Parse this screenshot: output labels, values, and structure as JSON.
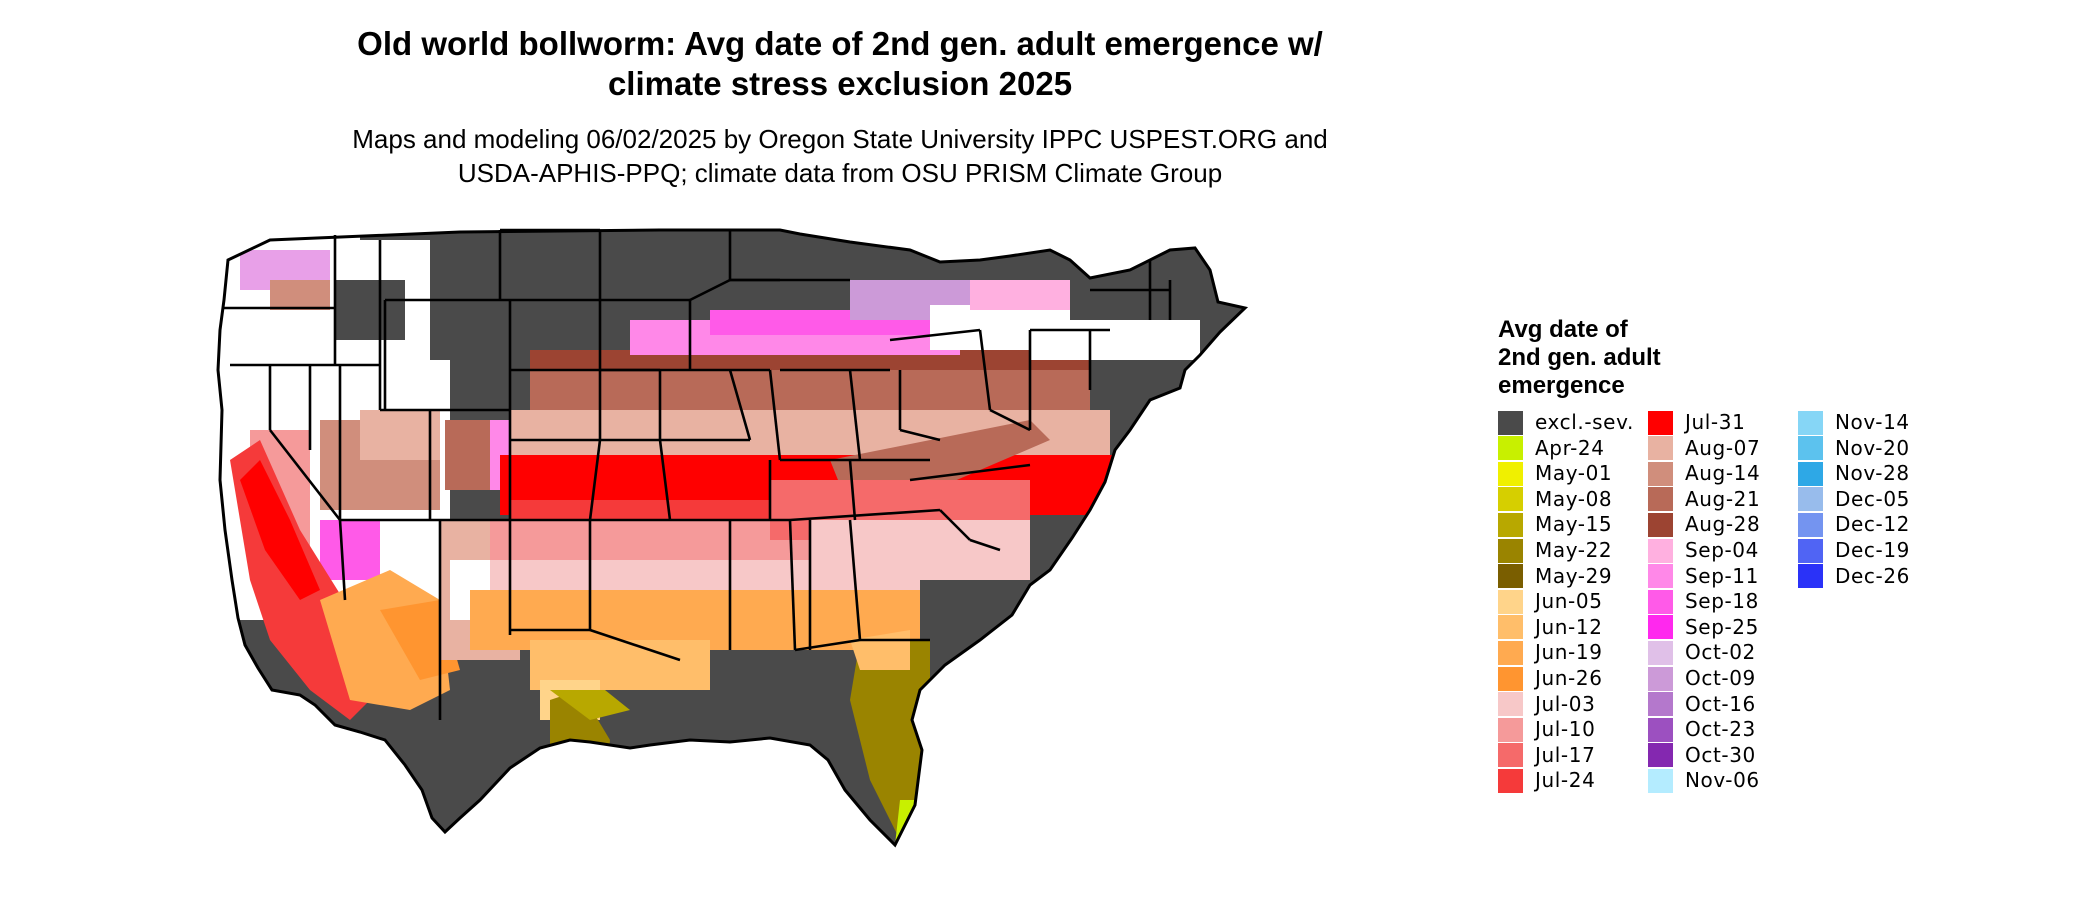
{
  "title_line1": "Old world bollworm: Avg date of 2nd gen. adult emergence w/",
  "title_line2": "climate stress exclusion 2025",
  "subtitle_line1": "Maps and modeling 06/02/2025 by Oregon State University IPPC USPEST.ORG and",
  "subtitle_line2": "USDA-APHIS-PPQ; climate data from OSU PRISM Climate Group",
  "legend": {
    "title_line1": "Avg date of",
    "title_line2": "2nd gen. adult",
    "title_line3": "emergence",
    "items": [
      {
        "label": "excl.-sev.",
        "color": "#4a4a4a"
      },
      {
        "label": "Apr-24",
        "color": "#c8f000"
      },
      {
        "label": "May-01",
        "color": "#f0f000"
      },
      {
        "label": "May-08",
        "color": "#d6cf00"
      },
      {
        "label": "May-15",
        "color": "#b8a800"
      },
      {
        "label": "May-22",
        "color": "#9a8400"
      },
      {
        "label": "May-29",
        "color": "#7a5e00"
      },
      {
        "label": "Jun-05",
        "color": "#ffd48a"
      },
      {
        "label": "Jun-12",
        "color": "#ffbe6a"
      },
      {
        "label": "Jun-19",
        "color": "#ffaa50"
      },
      {
        "label": "Jun-26",
        "color": "#ff9530"
      },
      {
        "label": "Jul-03",
        "color": "#f7c8c8"
      },
      {
        "label": "Jul-10",
        "color": "#f59a9a"
      },
      {
        "label": "Jul-17",
        "color": "#f56a6a"
      },
      {
        "label": "Jul-24",
        "color": "#f53a3a"
      },
      {
        "label": "Jul-31",
        "color": "#ff0000"
      },
      {
        "label": "Aug-07",
        "color": "#e8b2a2"
      },
      {
        "label": "Aug-14",
        "color": "#d08e7c"
      },
      {
        "label": "Aug-21",
        "color": "#b86a58"
      },
      {
        "label": "Aug-28",
        "color": "#9c4432"
      },
      {
        "label": "Sep-04",
        "color": "#ffb0e0"
      },
      {
        "label": "Sep-11",
        "color": "#ff88e8"
      },
      {
        "label": "Sep-18",
        "color": "#ff5ae8"
      },
      {
        "label": "Sep-25",
        "color": "#ff28ee"
      },
      {
        "label": "Oct-02",
        "color": "#e0c0e8"
      },
      {
        "label": "Oct-09",
        "color": "#cc9ad8"
      },
      {
        "label": "Oct-16",
        "color": "#b478cc"
      },
      {
        "label": "Oct-23",
        "color": "#9c50c0"
      },
      {
        "label": "Oct-30",
        "color": "#8428b0"
      },
      {
        "label": "Nov-06",
        "color": "#b4ecff"
      },
      {
        "label": "Nov-14",
        "color": "#86d6f6"
      },
      {
        "label": "Nov-20",
        "color": "#5cc2ee"
      },
      {
        "label": "Nov-28",
        "color": "#2ea8e6"
      },
      {
        "label": "Dec-05",
        "color": "#98bcec"
      },
      {
        "label": "Dec-12",
        "color": "#7494f0"
      },
      {
        "label": "Dec-19",
        "color": "#5064f4"
      },
      {
        "label": "Dec-26",
        "color": "#2a32f8"
      }
    ]
  }
}
